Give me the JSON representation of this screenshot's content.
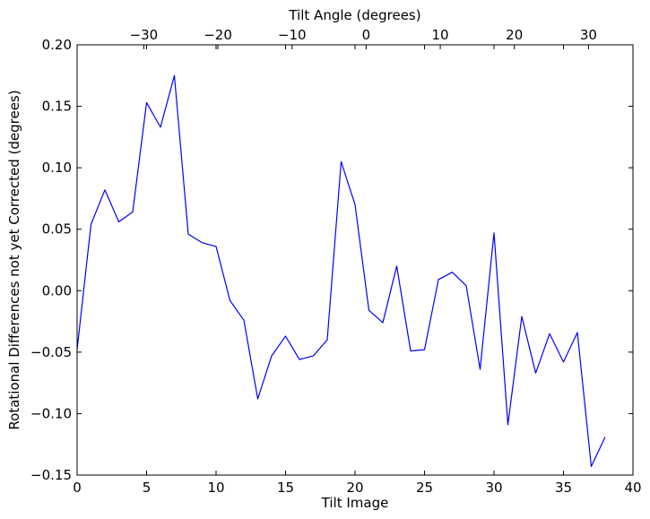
{
  "chart_data": {
    "type": "line",
    "xlabel": "Tilt Image",
    "x2label": "Tilt Angle (degrees)",
    "ylabel": "Rotational Differences not yet Corrected (degrees)",
    "xlim": [
      0,
      40
    ],
    "ylim": [
      -0.15,
      0.2
    ],
    "x2lim": [
      -39,
      36
    ],
    "xticks": [
      0,
      5,
      10,
      15,
      20,
      25,
      30,
      35,
      40
    ],
    "yticks": [
      -0.15,
      -0.1,
      -0.05,
      0.0,
      0.05,
      0.1,
      0.15,
      0.2
    ],
    "ytick_labels": [
      "−0.15",
      "−0.10",
      "−0.05",
      "0.00",
      "0.05",
      "0.10",
      "0.15",
      "0.20"
    ],
    "x2ticks": [
      -30,
      -20,
      -10,
      0,
      10,
      20,
      30
    ],
    "x2tick_labels": [
      "−30",
      "−20",
      "−10",
      "0",
      "10",
      "20",
      "30"
    ],
    "grid": false,
    "line_color": "#0000ff",
    "series": [
      {
        "x": [
          0,
          1,
          2,
          3,
          4,
          5,
          6,
          7,
          8,
          9,
          10,
          11,
          12,
          13,
          14,
          15,
          16,
          17,
          18,
          19,
          20,
          21,
          22,
          23,
          24,
          25,
          26,
          27,
          28,
          29,
          30,
          31,
          32,
          33,
          34,
          35,
          36,
          37,
          38
        ],
        "values": [
          -0.048,
          0.054,
          0.082,
          0.056,
          0.064,
          0.153,
          0.133,
          0.175,
          0.046,
          0.039,
          0.036,
          -0.008,
          -0.024,
          -0.088,
          -0.053,
          -0.037,
          -0.056,
          -0.053,
          -0.04,
          0.105,
          0.07,
          -0.016,
          -0.026,
          0.02,
          -0.049,
          -0.048,
          0.009,
          0.015,
          0.004,
          -0.064,
          0.047,
          -0.109,
          -0.021,
          -0.067,
          -0.035,
          -0.058,
          -0.034,
          -0.143,
          -0.119
        ]
      }
    ]
  }
}
